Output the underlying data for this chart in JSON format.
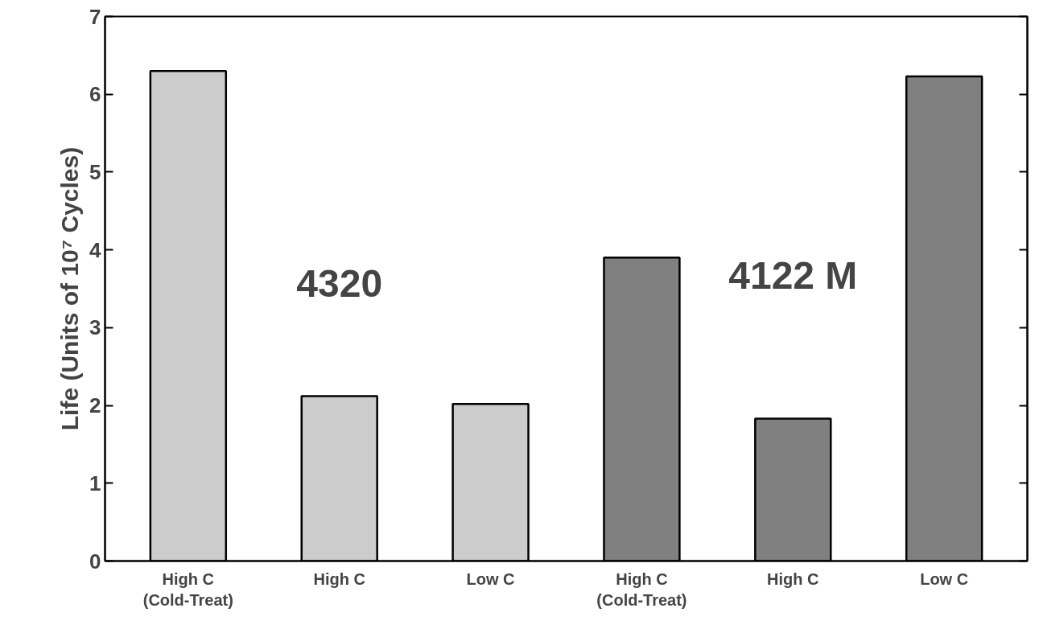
{
  "chart_data": {
    "type": "bar",
    "ylabel": "Life (Units of 10⁷ Cycles)",
    "categories": [
      "High C\n(Cold-Treat)",
      "High C",
      "Low C",
      "High C\n(Cold-Treat)",
      "High C",
      "Low C"
    ],
    "values": [
      6.3,
      2.12,
      2.02,
      3.9,
      1.83,
      6.23
    ],
    "colors": [
      "#cccccc",
      "#cccccc",
      "#cccccc",
      "#808080",
      "#808080",
      "#808080"
    ],
    "ylim": [
      0,
      7
    ],
    "yticks": [
      0,
      1,
      2,
      3,
      4,
      5,
      6,
      7
    ],
    "grid": false,
    "annotations": [
      "4320",
      "4122 M"
    ]
  }
}
